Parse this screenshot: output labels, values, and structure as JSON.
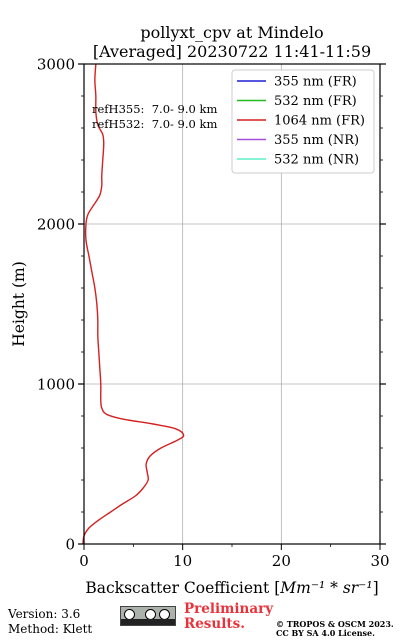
{
  "chart_data": {
    "type": "line",
    "title_line1": "pollyxt_cpv at Mindelo",
    "title_line2": "[Averaged] 20230722 11:41-11:59",
    "xlabel_prefix": "Backscatter Coefficient [",
    "xlabel_unit": "Mm⁻¹ * sr⁻¹",
    "xlabel_suffix": "]",
    "ylabel": "Height (m)",
    "xlim": [
      0,
      30
    ],
    "ylim": [
      0,
      3000
    ],
    "xticks": [
      0,
      10,
      20,
      30
    ],
    "yticks": [
      0,
      1000,
      2000,
      3000
    ],
    "grid": true,
    "legend_position": "top-right",
    "annotations": [
      "refH355:  7.0- 9.0 km",
      "refH532:  7.0- 9.0 km"
    ],
    "series": [
      {
        "name": "355 nm (FR)",
        "color": "#1f1fd6",
        "points": []
      },
      {
        "name": "532 nm (FR)",
        "color": "#22bb22",
        "points": []
      },
      {
        "name": "1064 nm (FR)",
        "color": "#d42020",
        "points": [
          [
            -0.1,
            0
          ],
          [
            0,
            50
          ],
          [
            0.5,
            100
          ],
          [
            1.5,
            150
          ],
          [
            2.7,
            200
          ],
          [
            3.9,
            250
          ],
          [
            5.2,
            300
          ],
          [
            6.0,
            350
          ],
          [
            6.5,
            400
          ],
          [
            6.4,
            450
          ],
          [
            6.3,
            500
          ],
          [
            6.7,
            550
          ],
          [
            7.8,
            600
          ],
          [
            9.5,
            650
          ],
          [
            10.1,
            680
          ],
          [
            9.3,
            720
          ],
          [
            7.0,
            750
          ],
          [
            4.0,
            780
          ],
          [
            2.3,
            810
          ],
          [
            1.8,
            850
          ],
          [
            1.7,
            900
          ],
          [
            1.7,
            1000
          ],
          [
            1.6,
            1100
          ],
          [
            1.5,
            1200
          ],
          [
            1.4,
            1300
          ],
          [
            1.4,
            1400
          ],
          [
            1.3,
            1500
          ],
          [
            1.1,
            1600
          ],
          [
            0.8,
            1700
          ],
          [
            0.5,
            1800
          ],
          [
            0.2,
            1900
          ],
          [
            0.2,
            2000
          ],
          [
            0.4,
            2060
          ],
          [
            1.0,
            2120
          ],
          [
            1.6,
            2180
          ],
          [
            1.8,
            2240
          ],
          [
            1.8,
            2300
          ],
          [
            1.9,
            2400
          ],
          [
            2.0,
            2500
          ],
          [
            1.9,
            2560
          ],
          [
            1.4,
            2620
          ],
          [
            1.2,
            2700
          ],
          [
            1.2,
            2800
          ],
          [
            1.1,
            2900
          ],
          [
            1.2,
            3000
          ]
        ]
      },
      {
        "name": "355 nm (NR)",
        "color": "#a54fd8",
        "points": []
      },
      {
        "name": "532 nm (NR)",
        "color": "#5eeec8",
        "points": []
      }
    ]
  },
  "footer": {
    "version": "Version: 3.6",
    "method": "Method: Klett",
    "preliminary_line1": "Preliminary",
    "preliminary_line2": "Results.",
    "copyright_line1": "© TROPOS & OSCM 2023.",
    "copyright_line2": "CC BY SA 4.0 License."
  }
}
